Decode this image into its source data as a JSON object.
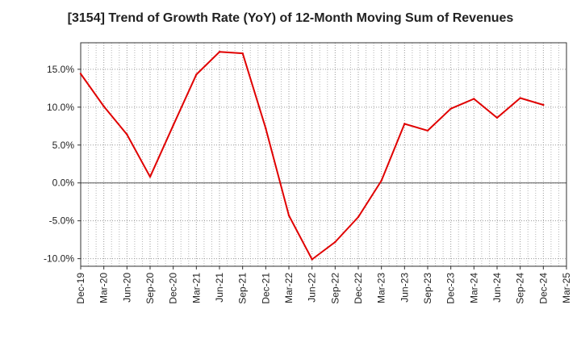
{
  "chart_data": {
    "type": "line",
    "title": "[3154]  Trend of Growth Rate (YoY) of 12-Month Moving Sum of Revenues",
    "xlabel": "",
    "ylabel": "",
    "ylim": [
      -11,
      18.5
    ],
    "yticks": [
      15,
      10,
      5,
      0,
      -5,
      -10
    ],
    "ytick_labels": [
      "15.0%",
      "10.0%",
      "5.0%",
      "0.0%",
      "-5.0%",
      "-10.0%"
    ],
    "x_tick_labels": [
      "Dec-19",
      "Mar-20",
      "Jun-20",
      "Sep-20",
      "Dec-20",
      "Mar-21",
      "Jun-21",
      "Sep-21",
      "Dec-21",
      "Mar-22",
      "Jun-22",
      "Sep-22",
      "Dec-22",
      "Mar-23",
      "Jun-23",
      "Sep-23",
      "Dec-23",
      "Mar-24",
      "Jun-24",
      "Sep-24",
      "Dec-24",
      "Mar-25"
    ],
    "grid": true,
    "color": "#e00000",
    "series": [
      {
        "values": [
          14.4,
          10.1,
          6.4,
          0.8,
          7.6,
          14.3,
          17.3,
          17.1,
          7.2,
          -4.3,
          -10.1,
          -7.8,
          -4.5,
          0.3,
          7.8,
          6.9,
          9.8,
          11.1,
          8.6,
          11.2,
          10.3
        ]
      }
    ]
  }
}
